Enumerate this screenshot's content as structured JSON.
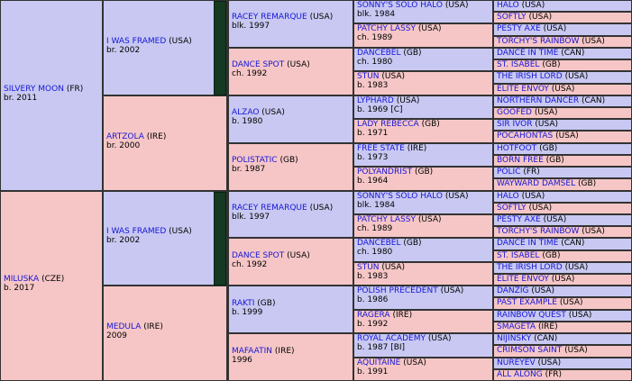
{
  "colors": {
    "sire_bg": "#c8c8f2",
    "dam_bg": "#f6c6c6",
    "link": "#1616d8",
    "inbred_mark": "#143a22",
    "border": "#333333"
  },
  "horses": [
    {
      "name": "SILVERY MOON",
      "country": "(FR)",
      "info": "br. 2011"
    },
    {
      "name": "I WAS FRAMED",
      "country": "(USA)",
      "info": "br. 2002"
    },
    {
      "name": "RACEY REMARQUE",
      "country": "(USA)",
      "info": "blk. 1997"
    },
    {
      "name": "SONNY'S SOLO HALO",
      "country": "(USA)",
      "info": "blk. 1984"
    },
    {
      "name": "HALO",
      "country": "(USA)",
      "info": ""
    },
    {
      "name": "SOFTLY",
      "country": "(USA)",
      "info": ""
    },
    {
      "name": "PATCHY LASSY",
      "country": "(USA)",
      "info": "ch. 1989"
    },
    {
      "name": "PESTY AXE",
      "country": "(USA)",
      "info": ""
    },
    {
      "name": "TORCHY'S RAINBOW",
      "country": "(USA)",
      "info": ""
    },
    {
      "name": "DANCE SPOT",
      "country": "(USA)",
      "info": "ch. 1992"
    },
    {
      "name": "DANCEBEL",
      "country": "(GB)",
      "info": "ch. 1980"
    },
    {
      "name": "DANCE IN TIME",
      "country": "(CAN)",
      "info": ""
    },
    {
      "name": "ST. ISABEL",
      "country": "(GB)",
      "info": ""
    },
    {
      "name": "STUN",
      "country": "(USA)",
      "info": "b. 1983"
    },
    {
      "name": "THE IRISH LORD",
      "country": "(USA)",
      "info": ""
    },
    {
      "name": "ELITE ENVOY",
      "country": "(USA)",
      "info": ""
    },
    {
      "name": "ARTZOLA",
      "country": "(IRE)",
      "info": "br. 2000"
    },
    {
      "name": "ALZAO",
      "country": "(USA)",
      "info": "b. 1980"
    },
    {
      "name": "LYPHARD",
      "country": "(USA)",
      "info": "b. 1969 [C]"
    },
    {
      "name": "NORTHERN DANCER",
      "country": "(CAN)",
      "info": ""
    },
    {
      "name": "GOOFED",
      "country": "(USA)",
      "info": ""
    },
    {
      "name": "LADY REBECCA",
      "country": "(GB)",
      "info": "b. 1971"
    },
    {
      "name": "SIR IVOR",
      "country": "(USA)",
      "info": ""
    },
    {
      "name": "POCAHONTAS",
      "country": "(USA)",
      "info": ""
    },
    {
      "name": "POLISTATIC",
      "country": "(GB)",
      "info": "br. 1987"
    },
    {
      "name": "FREE STATE",
      "country": "(IRE)",
      "info": "b. 1973"
    },
    {
      "name": "HOTFOOT",
      "country": "(GB)",
      "info": ""
    },
    {
      "name": "BORN FREE",
      "country": "(GB)",
      "info": ""
    },
    {
      "name": "POLYANDRIST",
      "country": "(GB)",
      "info": "b. 1964"
    },
    {
      "name": "POLIC",
      "country": "(FR)",
      "info": ""
    },
    {
      "name": "WAYWARD DAMSEL",
      "country": "(GB)",
      "info": ""
    },
    {
      "name": "MILUSKA",
      "country": "(CZE)",
      "info": "b. 2017"
    },
    {
      "name": "I WAS FRAMED",
      "country": "(USA)",
      "info": "br. 2002"
    },
    {
      "name": "RACEY REMARQUE",
      "country": "(USA)",
      "info": "blk. 1997"
    },
    {
      "name": "SONNY'S SOLO HALO",
      "country": "(USA)",
      "info": "blk. 1984"
    },
    {
      "name": "HALO",
      "country": "(USA)",
      "info": ""
    },
    {
      "name": "SOFTLY",
      "country": "(USA)",
      "info": ""
    },
    {
      "name": "PATCHY LASSY",
      "country": "(USA)",
      "info": "ch. 1989"
    },
    {
      "name": "PESTY AXE",
      "country": "(USA)",
      "info": ""
    },
    {
      "name": "TORCHY'S RAINBOW",
      "country": "(USA)",
      "info": ""
    },
    {
      "name": "DANCE SPOT",
      "country": "(USA)",
      "info": "ch. 1992"
    },
    {
      "name": "DANCEBEL",
      "country": "(GB)",
      "info": "ch. 1980"
    },
    {
      "name": "DANCE IN TIME",
      "country": "(CAN)",
      "info": ""
    },
    {
      "name": "ST. ISABEL",
      "country": "(GB)",
      "info": ""
    },
    {
      "name": "STUN",
      "country": "(USA)",
      "info": "b. 1983"
    },
    {
      "name": "THE IRISH LORD",
      "country": "(USA)",
      "info": ""
    },
    {
      "name": "ELITE ENVOY",
      "country": "(USA)",
      "info": ""
    },
    {
      "name": "MEDULA",
      "country": "(IRE)",
      "info": "2009"
    },
    {
      "name": "RAKTI",
      "country": "(GB)",
      "info": "b. 1999"
    },
    {
      "name": "POLISH PRECEDENT",
      "country": "(USA)",
      "info": "b. 1986"
    },
    {
      "name": "DANZIG",
      "country": "(USA)",
      "info": ""
    },
    {
      "name": "PAST EXAMPLE",
      "country": "(USA)",
      "info": ""
    },
    {
      "name": "RAGERA",
      "country": "(IRE)",
      "info": "b. 1992"
    },
    {
      "name": "RAINBOW QUEST",
      "country": "(USA)",
      "info": ""
    },
    {
      "name": "SMAGETA",
      "country": "(IRE)",
      "info": ""
    },
    {
      "name": "MAFAATIN",
      "country": "(IRE)",
      "info": "1996"
    },
    {
      "name": "ROYAL ACADEMY",
      "country": "(USA)",
      "info": "b. 1987 [BI]"
    },
    {
      "name": "NIJINSKY",
      "country": "(CAN)",
      "info": ""
    },
    {
      "name": "CRIMSON SAINT",
      "country": "(USA)",
      "info": ""
    },
    {
      "name": "AQUITAINE",
      "country": "(USA)",
      "info": "b. 1991"
    },
    {
      "name": "NUREYEV",
      "country": "(USA)",
      "info": ""
    },
    {
      "name": "ALL ALONG",
      "country": "(FR)",
      "info": ""
    }
  ]
}
